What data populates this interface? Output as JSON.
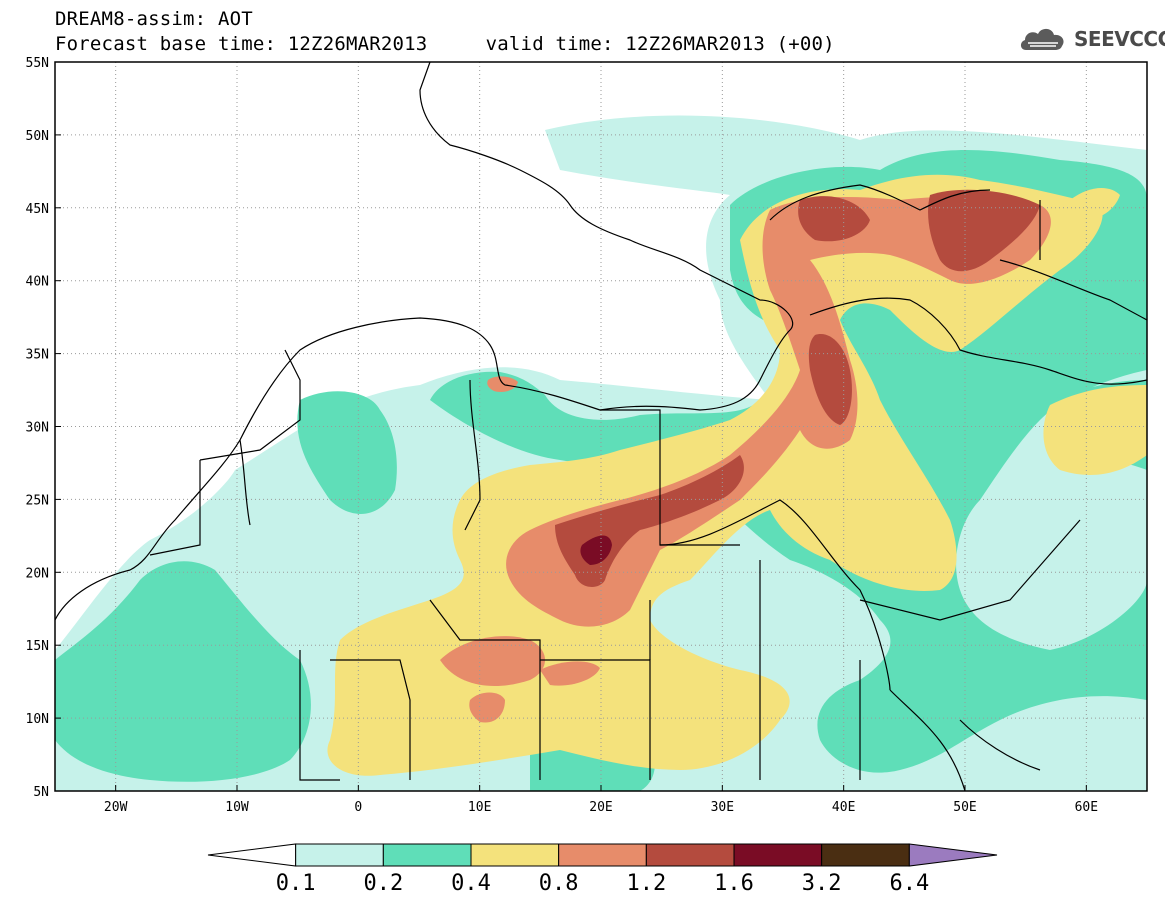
{
  "header": {
    "title_line1": "DREAM8-assim: AOT",
    "title_line2": "Forecast base time: 12Z26MAR2013     valid time: 12Z26MAR2013 (+00)"
  },
  "logo": {
    "icon": "cloud-icon",
    "text": "SEEVCCC"
  },
  "map": {
    "lon_range": [
      -25,
      65
    ],
    "lat_range": [
      5,
      55
    ],
    "lat_ticks": [
      {
        "value": 55,
        "label": "55N"
      },
      {
        "value": 50,
        "label": "50N"
      },
      {
        "value": 45,
        "label": "45N"
      },
      {
        "value": 40,
        "label": "40N"
      },
      {
        "value": 35,
        "label": "35N"
      },
      {
        "value": 30,
        "label": "30N"
      },
      {
        "value": 25,
        "label": "25N"
      },
      {
        "value": 20,
        "label": "20N"
      },
      {
        "value": 15,
        "label": "15N"
      },
      {
        "value": 10,
        "label": "10N"
      },
      {
        "value": 5,
        "label": "5N"
      }
    ],
    "lon_ticks": [
      {
        "value": -20,
        "label": "20W"
      },
      {
        "value": -10,
        "label": "10W"
      },
      {
        "value": 0,
        "label": "0"
      },
      {
        "value": 10,
        "label": "10E"
      },
      {
        "value": 20,
        "label": "20E"
      },
      {
        "value": 30,
        "label": "30E"
      },
      {
        "value": 40,
        "label": "40E"
      },
      {
        "value": 50,
        "label": "50E"
      },
      {
        "value": 60,
        "label": "60E"
      }
    ],
    "grid": "dotted"
  },
  "colorbar": {
    "levels": [
      "0.1",
      "0.2",
      "0.4",
      "0.8",
      "1.2",
      "1.6",
      "3.2",
      "6.4"
    ],
    "colors": [
      "#c6f2ea",
      "#5fdeb8",
      "#f4e27c",
      "#e78c6a",
      "#b44b3e",
      "#7a0c25",
      "#4a2e12",
      "#9b7bbf"
    ],
    "under_color": "#ffffff"
  }
}
